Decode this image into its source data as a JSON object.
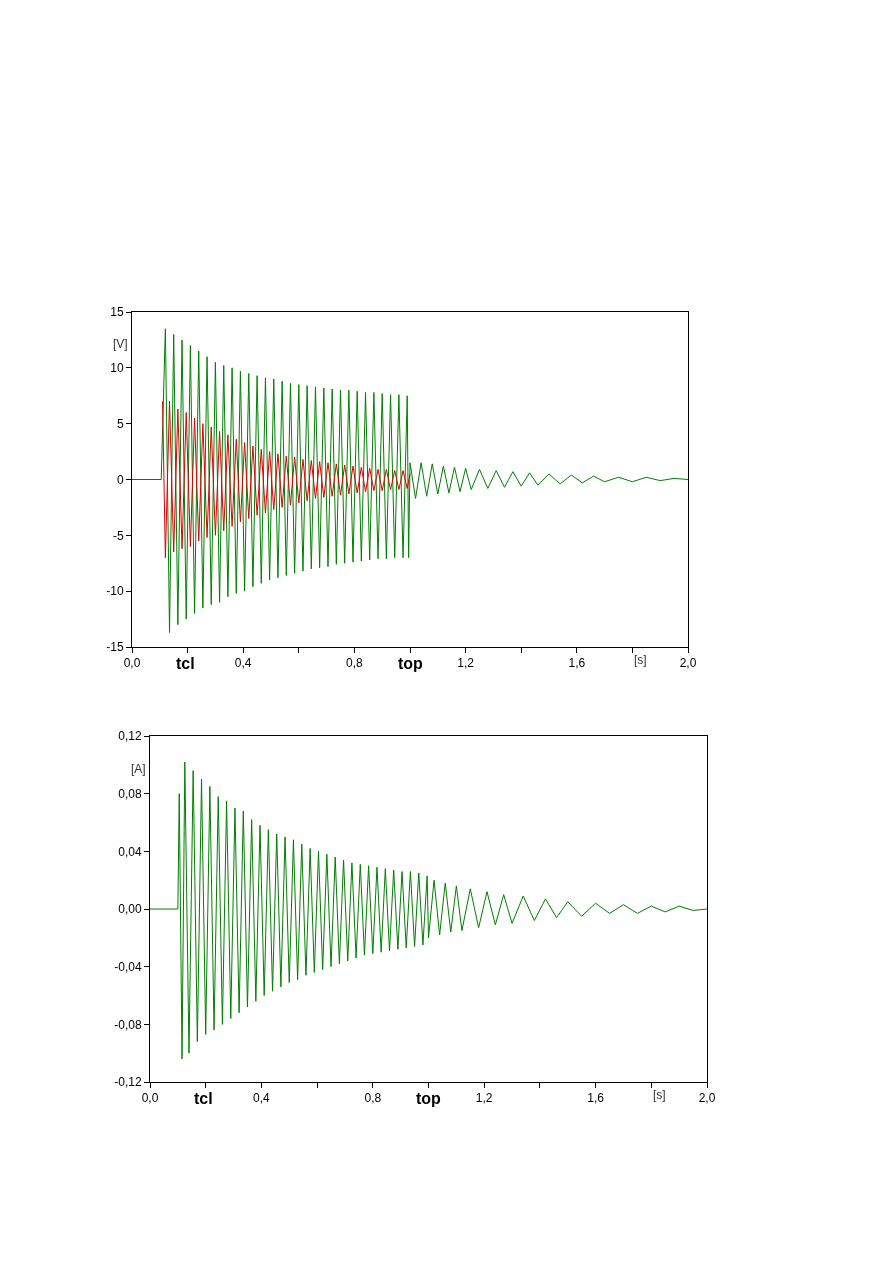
{
  "chart_data": [
    {
      "type": "line",
      "xlabel": "[s]",
      "ylabel": "[V]",
      "xlim": [
        0,
        2
      ],
      "ylim": [
        -15,
        15
      ],
      "xticks": [
        {
          "value": 0,
          "label": "0,0"
        },
        {
          "value": 0.2,
          "label": null
        },
        {
          "value": 0.4,
          "label": "0,4"
        },
        {
          "value": 0.6,
          "label": null
        },
        {
          "value": 0.8,
          "label": "0,8"
        },
        {
          "value": 1.0,
          "label": null
        },
        {
          "value": 1.2,
          "label": "1,2"
        },
        {
          "value": 1.4,
          "label": null
        },
        {
          "value": 1.6,
          "label": "1,6"
        },
        {
          "value": 1.8,
          "label": null
        },
        {
          "value": 2.0,
          "label": "2,0"
        }
      ],
      "yticks": [
        -15,
        -10,
        -5,
        0,
        5,
        10,
        15
      ],
      "grid": false,
      "annotations": [
        "tcl",
        "top"
      ],
      "series": [
        {
          "color": "#008000",
          "x": [
            0,
            0.105,
            0.12,
            0.135,
            0.15,
            0.165,
            0.18,
            0.195,
            0.21,
            0.225,
            0.24,
            0.255,
            0.27,
            0.285,
            0.3,
            0.315,
            0.33,
            0.345,
            0.36,
            0.375,
            0.39,
            0.405,
            0.42,
            0.435,
            0.45,
            0.465,
            0.48,
            0.495,
            0.51,
            0.525,
            0.54,
            0.555,
            0.57,
            0.585,
            0.6,
            0.615,
            0.63,
            0.645,
            0.66,
            0.675,
            0.69,
            0.705,
            0.72,
            0.735,
            0.75,
            0.765,
            0.78,
            0.795,
            0.81,
            0.825,
            0.84,
            0.855,
            0.87,
            0.885,
            0.9,
            0.915,
            0.93,
            0.945,
            0.96,
            0.975,
            0.99,
            0.995,
            1.0,
            1.02,
            1.04,
            1.06,
            1.08,
            1.1,
            1.12,
            1.14,
            1.16,
            1.18,
            1.2,
            1.22,
            1.25,
            1.28,
            1.31,
            1.34,
            1.37,
            1.4,
            1.43,
            1.46,
            1.5,
            1.54,
            1.58,
            1.62,
            1.66,
            1.7,
            1.75,
            1.8,
            1.85,
            1.9,
            1.95,
            2.0
          ],
          "values": [
            0,
            0,
            13.5,
            -13.7,
            13,
            -13,
            12.5,
            -12.5,
            12,
            -12,
            11.5,
            -11.5,
            11,
            -11.2,
            10.5,
            -11,
            10.2,
            -10.5,
            10,
            -10.2,
            9.7,
            -10,
            9.5,
            -9.6,
            9.3,
            -9.3,
            9.1,
            -9,
            9,
            -8.8,
            8.8,
            -8.6,
            8.6,
            -8.4,
            8.5,
            -8.2,
            8.4,
            -8,
            8.3,
            -7.9,
            8.2,
            -7.8,
            8.1,
            -7.6,
            8,
            -7.5,
            8,
            -7.4,
            7.9,
            -7.3,
            7.8,
            -7.2,
            7.8,
            -7.1,
            7.7,
            -7.1,
            7.6,
            -7,
            7.6,
            -7,
            7.5,
            -7,
            1.5,
            -1.7,
            1.5,
            -1.5,
            1.4,
            -1.3,
            1.2,
            -1.2,
            1.1,
            -1.1,
            1,
            -0.9,
            0.9,
            -0.8,
            0.8,
            -0.7,
            0.7,
            -0.6,
            0.6,
            -0.5,
            0.5,
            -0.4,
            0.4,
            -0.3,
            0.3,
            -0.2,
            0.2,
            -0.2,
            0.2,
            -0.1,
            0.1,
            0
          ]
        },
        {
          "color": "#e00000",
          "x": [
            0.11,
            0.12,
            0.135,
            0.15,
            0.165,
            0.18,
            0.195,
            0.21,
            0.225,
            0.24,
            0.255,
            0.27,
            0.285,
            0.3,
            0.315,
            0.33,
            0.345,
            0.36,
            0.375,
            0.39,
            0.405,
            0.42,
            0.435,
            0.45,
            0.465,
            0.48,
            0.495,
            0.51,
            0.525,
            0.54,
            0.555,
            0.57,
            0.585,
            0.6,
            0.615,
            0.63,
            0.645,
            0.66,
            0.675,
            0.69,
            0.705,
            0.72,
            0.735,
            0.75,
            0.765,
            0.78,
            0.795,
            0.81,
            0.825,
            0.84,
            0.855,
            0.87,
            0.885,
            0.9,
            0.915,
            0.93,
            0.945,
            0.96,
            0.975,
            0.99,
            1.0
          ],
          "values": [
            7,
            -7,
            7,
            -6.5,
            6.3,
            -6.2,
            6,
            -6,
            5.5,
            -5.5,
            5,
            -5.2,
            4.7,
            -5,
            4.3,
            -4.6,
            4,
            -4.2,
            3.6,
            -3.8,
            3.3,
            -3.5,
            3,
            -3.2,
            2.7,
            -3,
            2.5,
            -2.7,
            2.3,
            -2.5,
            2.1,
            -2.3,
            2,
            -2.1,
            1.8,
            -1.9,
            1.7,
            -1.7,
            1.6,
            -1.6,
            1.5,
            -1.5,
            1.4,
            -1.4,
            1.3,
            -1.3,
            1.2,
            -1.2,
            1.1,
            -1.1,
            1,
            -1,
            0.9,
            -1,
            0.9,
            -0.9,
            0.8,
            -0.9,
            0.8,
            -0.8,
            0.5
          ]
        }
      ]
    },
    {
      "type": "line",
      "xlabel": "[s]",
      "ylabel": "[A]",
      "xlim": [
        0,
        2
      ],
      "ylim": [
        -0.12,
        0.12
      ],
      "xticks": [
        {
          "value": 0,
          "label": "0,0"
        },
        {
          "value": 0.2,
          "label": null
        },
        {
          "value": 0.4,
          "label": "0,4"
        },
        {
          "value": 0.6,
          "label": null
        },
        {
          "value": 0.8,
          "label": "0,8"
        },
        {
          "value": 1.0,
          "label": null
        },
        {
          "value": 1.2,
          "label": "1,2"
        },
        {
          "value": 1.4,
          "label": null
        },
        {
          "value": 1.6,
          "label": "1,6"
        },
        {
          "value": 1.8,
          "label": null
        },
        {
          "value": 2.0,
          "label": "2,0"
        }
      ],
      "yticks": [
        {
          "value": -0.12,
          "label": "-0,12"
        },
        {
          "value": -0.08,
          "label": "-0,08"
        },
        {
          "value": -0.04,
          "label": "-0,04"
        },
        {
          "value": 0,
          "label": "0,00"
        },
        {
          "value": 0.04,
          "label": "0,04"
        },
        {
          "value": 0.08,
          "label": "0,08"
        },
        {
          "value": 0.12,
          "label": "0,12"
        }
      ],
      "grid": false,
      "annotations": [
        "tcl",
        "top"
      ],
      "series": [
        {
          "color": "#008000",
          "x": [
            0,
            0.1,
            0.105,
            0.115,
            0.125,
            0.14,
            0.155,
            0.17,
            0.185,
            0.2,
            0.215,
            0.23,
            0.245,
            0.26,
            0.275,
            0.29,
            0.305,
            0.32,
            0.335,
            0.35,
            0.365,
            0.38,
            0.395,
            0.41,
            0.425,
            0.44,
            0.455,
            0.47,
            0.485,
            0.5,
            0.515,
            0.53,
            0.545,
            0.56,
            0.575,
            0.59,
            0.605,
            0.62,
            0.635,
            0.65,
            0.665,
            0.68,
            0.695,
            0.71,
            0.725,
            0.74,
            0.755,
            0.77,
            0.785,
            0.8,
            0.815,
            0.83,
            0.845,
            0.86,
            0.875,
            0.89,
            0.905,
            0.92,
            0.935,
            0.95,
            0.965,
            0.98,
            0.995,
            1.0,
            1.02,
            1.04,
            1.06,
            1.08,
            1.1,
            1.12,
            1.15,
            1.18,
            1.21,
            1.24,
            1.27,
            1.3,
            1.34,
            1.38,
            1.42,
            1.46,
            1.5,
            1.55,
            1.6,
            1.65,
            1.7,
            1.75,
            1.8,
            1.85,
            1.9,
            1.95,
            2.0
          ],
          "values": [
            0,
            0,
            0.08,
            -0.104,
            0.102,
            -0.1,
            0.096,
            -0.092,
            0.09,
            -0.087,
            0.085,
            -0.084,
            0.078,
            -0.08,
            0.075,
            -0.076,
            0.07,
            -0.072,
            0.068,
            -0.068,
            0.062,
            -0.064,
            0.058,
            -0.06,
            0.055,
            -0.057,
            0.052,
            -0.054,
            0.05,
            -0.051,
            0.048,
            -0.049,
            0.045,
            -0.046,
            0.042,
            -0.044,
            0.04,
            -0.042,
            0.038,
            -0.04,
            0.036,
            -0.038,
            0.034,
            -0.036,
            0.032,
            -0.034,
            0.031,
            -0.032,
            0.03,
            -0.031,
            0.029,
            -0.03,
            0.028,
            -0.029,
            0.027,
            -0.028,
            0.026,
            -0.027,
            0.026,
            -0.026,
            0.025,
            -0.025,
            0.023,
            -0.02,
            0.02,
            -0.018,
            0.018,
            -0.016,
            0.016,
            -0.015,
            0.014,
            -0.013,
            0.012,
            -0.011,
            0.01,
            -0.01,
            0.009,
            -0.008,
            0.007,
            -0.006,
            0.005,
            -0.005,
            0.004,
            -0.003,
            0.003,
            -0.003,
            0.002,
            -0.002,
            0.002,
            -0.001,
            0
          ]
        }
      ]
    }
  ]
}
